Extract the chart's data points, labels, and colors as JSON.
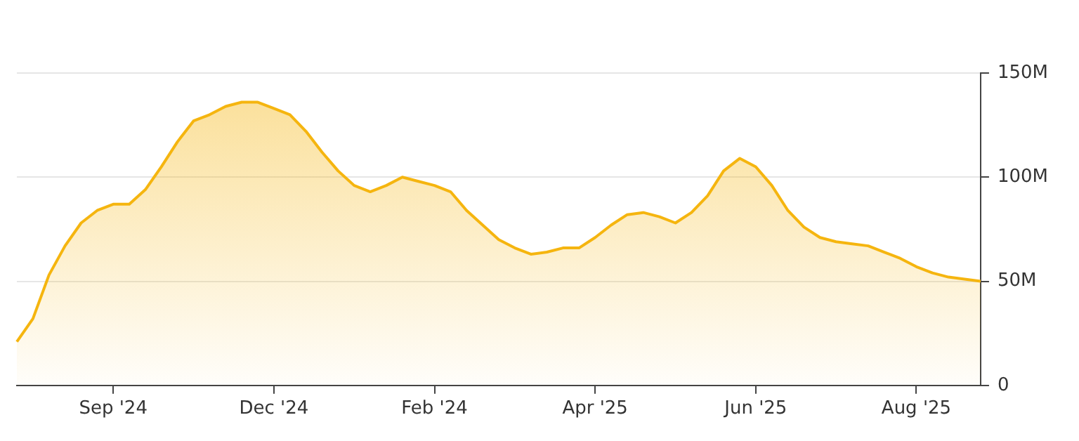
{
  "chart_data": {
    "type": "area",
    "categories": [
      null,
      null,
      null,
      null,
      null,
      null,
      "Sep '24",
      null,
      null,
      null,
      null,
      null,
      null,
      null,
      null,
      null,
      "Dec '24",
      null,
      null,
      null,
      null,
      null,
      null,
      null,
      null,
      null,
      "Feb '24",
      null,
      null,
      null,
      null,
      null,
      null,
      null,
      null,
      null,
      "Apr '25",
      null,
      null,
      null,
      null,
      null,
      null,
      null,
      null,
      null,
      "Jun '25",
      null,
      null,
      null,
      null,
      null,
      null,
      null,
      null,
      null,
      "Aug '25",
      null,
      null,
      null,
      null
    ],
    "series": [
      {
        "color": "#f5b50f",
        "values": [
          21,
          32,
          53,
          67,
          78,
          84,
          87,
          87,
          94,
          105,
          117,
          127,
          130,
          134,
          136,
          136,
          133,
          130,
          122,
          112,
          103,
          96,
          93,
          96,
          100,
          98,
          96,
          93,
          84,
          77,
          70,
          66,
          63,
          64,
          66,
          66,
          71,
          77,
          82,
          83,
          81,
          78,
          83,
          91,
          103,
          109,
          105,
          96,
          84,
          76,
          71,
          69,
          68,
          67,
          64,
          61,
          57,
          54,
          52,
          51,
          50
        ]
      }
    ],
    "ylim": [
      0,
      150
    ],
    "yticks": [
      0,
      {
        "value": 50,
        "label": "50M"
      },
      {
        "value": 100,
        "label": "100M"
      },
      {
        "value": 150,
        "label": "150M"
      }
    ],
    "grid": "y",
    "legend": false,
    "marker": "none",
    "line_style": "solid"
  }
}
